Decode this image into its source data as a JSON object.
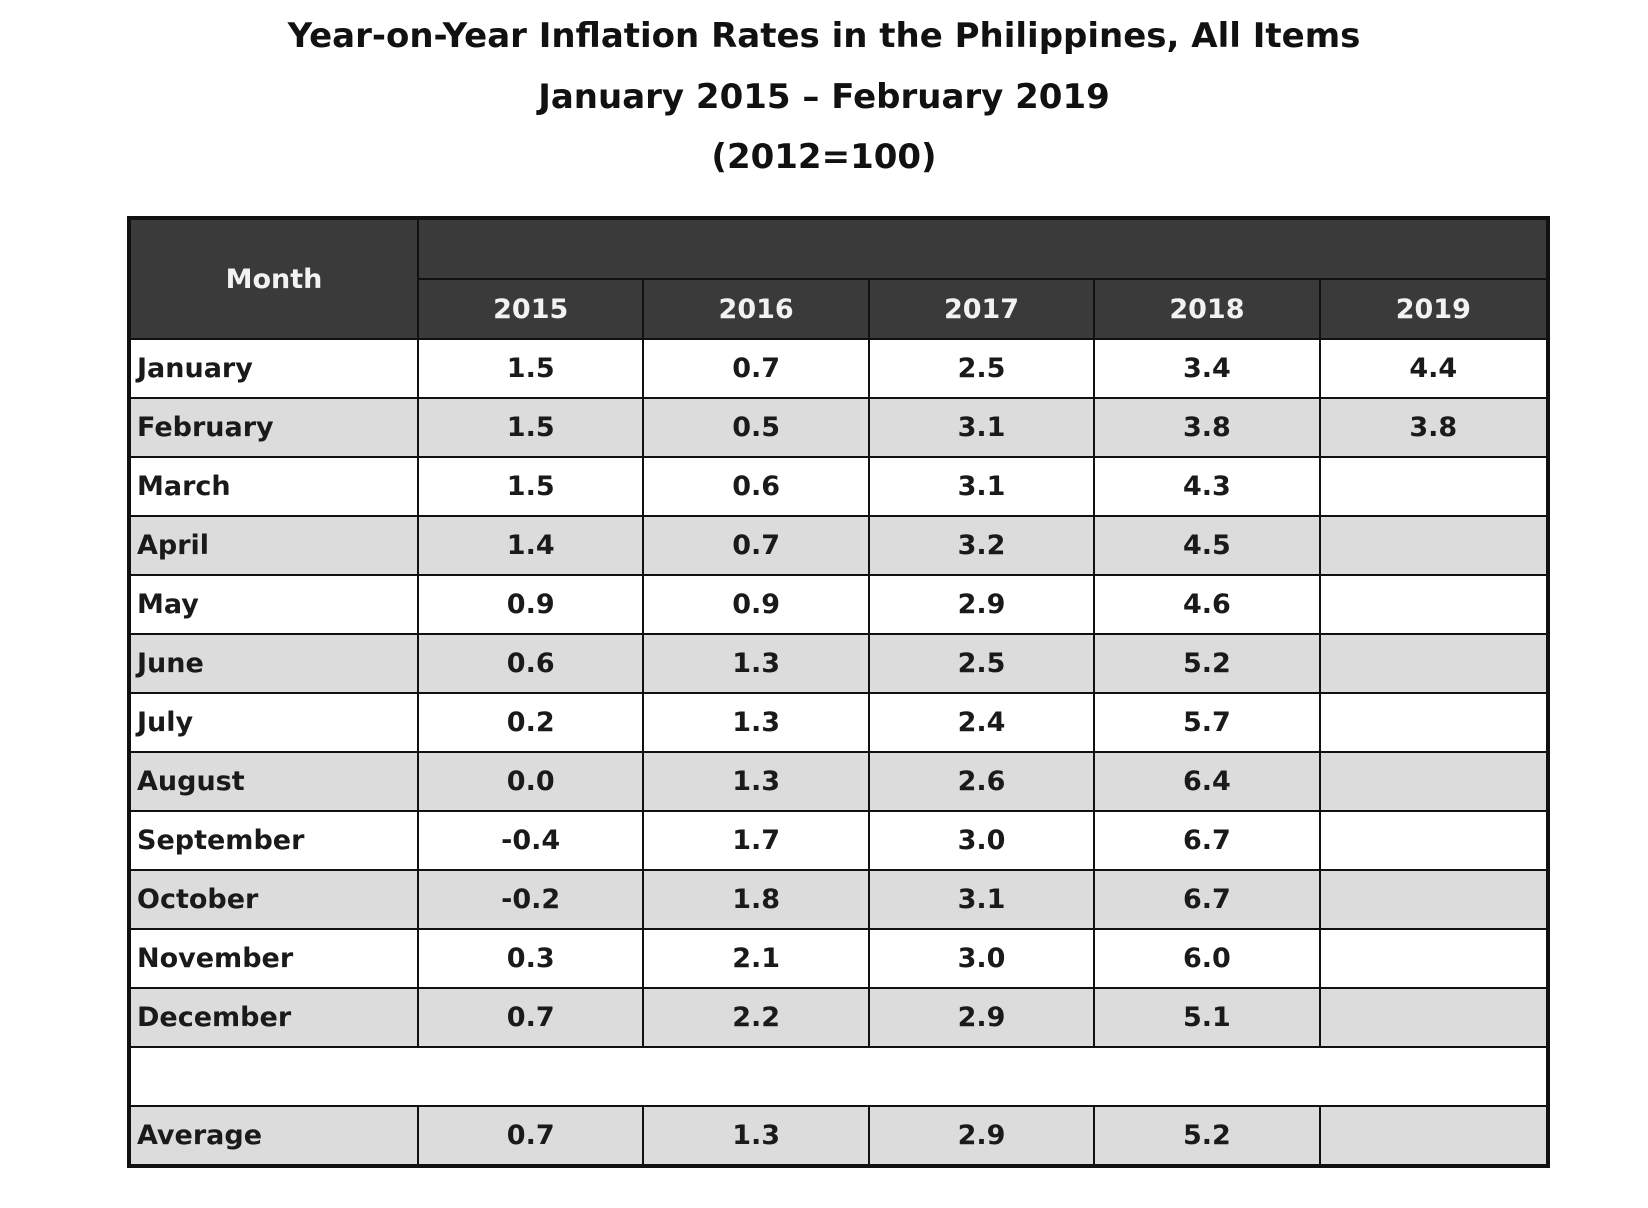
{
  "title": {
    "line1": "Year-on-Year Inflation Rates in the Philippines, All Items",
    "line2": "January 2015 – February 2019",
    "line3": "(2012=100)"
  },
  "table": {
    "month_header": "Month",
    "years": [
      "2015",
      "2016",
      "2017",
      "2018",
      "2019"
    ],
    "rows": [
      {
        "month": "January",
        "values": [
          "1.5",
          "0.7",
          "2.5",
          "3.4",
          "4.4"
        ]
      },
      {
        "month": "February",
        "values": [
          "1.5",
          "0.5",
          "3.1",
          "3.8",
          "3.8"
        ]
      },
      {
        "month": "March",
        "values": [
          "1.5",
          "0.6",
          "3.1",
          "4.3",
          ""
        ]
      },
      {
        "month": "April",
        "values": [
          "1.4",
          "0.7",
          "3.2",
          "4.5",
          ""
        ]
      },
      {
        "month": "May",
        "values": [
          "0.9",
          "0.9",
          "2.9",
          "4.6",
          ""
        ]
      },
      {
        "month": "June",
        "values": [
          "0.6",
          "1.3",
          "2.5",
          "5.2",
          ""
        ]
      },
      {
        "month": "July",
        "values": [
          "0.2",
          "1.3",
          "2.4",
          "5.7",
          ""
        ]
      },
      {
        "month": "August",
        "values": [
          "0.0",
          "1.3",
          "2.6",
          "6.4",
          ""
        ]
      },
      {
        "month": "September",
        "values": [
          "-0.4",
          "1.7",
          "3.0",
          "6.7",
          ""
        ]
      },
      {
        "month": "October",
        "values": [
          "-0.2",
          "1.8",
          "3.1",
          "6.7",
          ""
        ]
      },
      {
        "month": "November",
        "values": [
          "0.3",
          "2.1",
          "3.0",
          "6.0",
          ""
        ]
      },
      {
        "month": "December",
        "values": [
          "0.7",
          "2.2",
          "2.9",
          "5.1",
          ""
        ]
      }
    ],
    "average": {
      "month": "Average",
      "values": [
        "0.7",
        "1.3",
        "2.9",
        "5.2",
        ""
      ]
    }
  }
}
